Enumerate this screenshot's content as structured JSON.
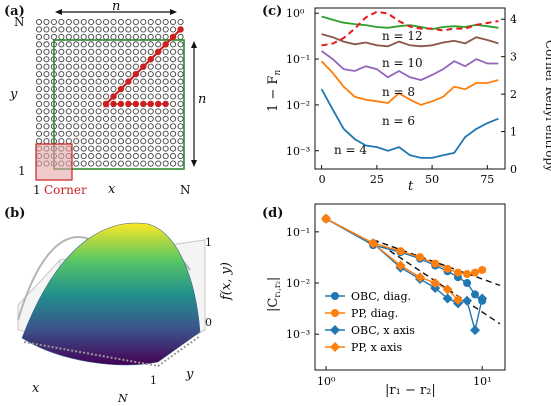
{
  "panels": {
    "a": {
      "label": "(a)",
      "top_label": "n",
      "right_label": "n",
      "y_label": "y",
      "x_label": "x",
      "corner_label": "Corner",
      "y_ticks": [
        "N",
        "1"
      ],
      "x_ticks": [
        "1",
        "N"
      ],
      "colors": {
        "inner_square": "#2e8b2e",
        "diagonal": "#cc1f1f",
        "corner_box": "#e5a7a7"
      }
    },
    "b": {
      "label": "(b)",
      "x_label": "x",
      "y_label": "y",
      "z_label": "f(x, y)",
      "z_ticks": [
        "0",
        "1"
      ],
      "y_ticks": [
        "1",
        "N"
      ]
    },
    "c": {
      "label": "(c)",
      "ylabel_left": "1 − F",
      "ylabel_left_sub": "n",
      "ylabel_right": "Corner Rényi entropy",
      "xlabel": "t",
      "x_ticks": [
        "0",
        "25",
        "50",
        "75"
      ],
      "y_ticks_left": [
        "10⁰",
        "10⁻¹",
        "10⁻²",
        "10⁻³"
      ],
      "y_ticks_right": [
        "0",
        "1",
        "2",
        "3",
        "4"
      ],
      "curve_labels": [
        "n = 12",
        "n = 10",
        "n = 8",
        "n = 6",
        "n = 4"
      ]
    },
    "d": {
      "label": "(d)",
      "ylabel": "|C",
      "ylabel_sub": "r₁,r₂",
      "ylabel_end": "|",
      "xlabel": "|r₁ − r₂|",
      "x_ticks": [
        "10⁰",
        "10¹"
      ],
      "y_ticks": [
        "10⁻¹",
        "10⁻²",
        "10⁻³"
      ]
    }
  },
  "chart_data": [
    {
      "panel": "c",
      "type": "line",
      "xlabel": "t",
      "ylabel": "1 − F_n",
      "y2label": "Corner Rényi entropy",
      "xlim": [
        -3,
        83
      ],
      "ylim": [
        0.0004,
        1.3
      ],
      "y2lim": [
        0,
        4.3
      ],
      "yscale": "log",
      "series": [
        {
          "name": "n = 12",
          "color": "#2ca02c",
          "x": [
            0,
            5,
            10,
            15,
            20,
            25,
            30,
            35,
            40,
            45,
            50,
            55,
            60,
            65,
            70,
            75,
            80
          ],
          "y": [
            0.85,
            0.72,
            0.62,
            0.58,
            0.55,
            0.5,
            0.48,
            0.52,
            0.55,
            0.5,
            0.45,
            0.5,
            0.52,
            0.5,
            0.56,
            0.52,
            0.48
          ]
        },
        {
          "name": "n = 10",
          "color": "#8c564b",
          "x": [
            0,
            5,
            10,
            15,
            20,
            25,
            30,
            35,
            40,
            45,
            50,
            55,
            60,
            65,
            70,
            75,
            80
          ],
          "y": [
            0.35,
            0.3,
            0.24,
            0.21,
            0.23,
            0.2,
            0.19,
            0.24,
            0.2,
            0.19,
            0.2,
            0.23,
            0.25,
            0.22,
            0.3,
            0.26,
            0.22
          ]
        },
        {
          "name": "n = 8",
          "color": "#9467bd",
          "x": [
            0,
            5,
            10,
            15,
            20,
            25,
            30,
            35,
            40,
            45,
            50,
            55,
            60,
            65,
            70,
            75,
            80
          ],
          "y": [
            0.15,
            0.1,
            0.06,
            0.055,
            0.07,
            0.06,
            0.04,
            0.055,
            0.04,
            0.035,
            0.045,
            0.06,
            0.09,
            0.07,
            0.1,
            0.08,
            0.08
          ]
        },
        {
          "name": "n = 6",
          "color": "#ff7f0e",
          "x": [
            0,
            5,
            10,
            15,
            20,
            25,
            30,
            35,
            40,
            45,
            50,
            55,
            60,
            65,
            70,
            75,
            80
          ],
          "y": [
            0.09,
            0.05,
            0.025,
            0.015,
            0.013,
            0.012,
            0.011,
            0.018,
            0.013,
            0.01,
            0.012,
            0.015,
            0.025,
            0.022,
            0.03,
            0.03,
            0.035
          ]
        },
        {
          "name": "n = 4",
          "color": "#1f77b4",
          "x": [
            0,
            5,
            10,
            15,
            20,
            25,
            30,
            35,
            40,
            45,
            50,
            55,
            60,
            65,
            70,
            75,
            80
          ],
          "y": [
            0.022,
            0.008,
            0.003,
            0.0018,
            0.0013,
            0.0012,
            0.001,
            0.0012,
            0.0008,
            0.0007,
            0.0007,
            0.0008,
            0.0009,
            0.002,
            0.003,
            0.004,
            0.005
          ]
        },
        {
          "name": "Corner Rényi entropy",
          "color": "#e41a1c",
          "dashed": true,
          "axis": "right",
          "x": [
            0,
            5,
            10,
            15,
            20,
            25,
            30,
            35,
            40,
            45,
            50,
            55,
            60,
            65,
            70,
            75,
            80
          ],
          "y": [
            3.3,
            3.35,
            3.5,
            3.75,
            4.05,
            4.2,
            4.15,
            3.95,
            3.8,
            3.75,
            3.75,
            3.7,
            3.75,
            3.75,
            3.85,
            3.9,
            3.95
          ]
        }
      ]
    },
    {
      "panel": "d",
      "type": "scatter",
      "xlabel": "|r₁ − r₂|",
      "ylabel": "|C_{r₁,r₂}|",
      "xscale": "log",
      "yscale": "log",
      "xlim": [
        0.85,
        14
      ],
      "ylim": [
        0.0002,
        0.35
      ],
      "series": [
        {
          "name": "OBC, diag.",
          "color": "#1f77b4",
          "marker": "circle",
          "x": [
            1,
            2,
            3,
            4,
            5,
            6,
            7,
            8,
            9,
            10
          ],
          "y": [
            0.18,
            0.055,
            0.04,
            0.03,
            0.022,
            0.017,
            0.013,
            0.01,
            0.006,
            0.0045
          ]
        },
        {
          "name": "PP, diag.",
          "color": "#ff7f0e",
          "marker": "circle",
          "x": [
            1,
            2,
            3,
            4,
            5,
            6,
            7,
            8,
            9,
            10
          ],
          "y": [
            0.18,
            0.06,
            0.042,
            0.032,
            0.024,
            0.019,
            0.016,
            0.015,
            0.016,
            0.018
          ]
        },
        {
          "name": "OBC, x axis",
          "color": "#1f77b4",
          "marker": "diamond",
          "x": [
            1,
            2,
            3,
            4,
            5,
            6,
            7,
            8,
            9,
            10
          ],
          "y": [
            0.18,
            0.06,
            0.02,
            0.012,
            0.008,
            0.005,
            0.004,
            0.0045,
            0.0012,
            0.005
          ]
        },
        {
          "name": "PP, x axis",
          "color": "#ff7f0e",
          "marker": "diamond",
          "x": [
            1,
            2,
            3,
            4,
            5,
            6,
            7
          ],
          "y": [
            0.18,
            0.06,
            0.022,
            0.013,
            0.01,
            0.0075,
            0.0047
          ]
        }
      ],
      "fit_lines": [
        {
          "style": "dashed",
          "x": [
            2,
            13
          ],
          "y": [
            0.07,
            0.009
          ]
        },
        {
          "style": "dashed",
          "x": [
            2,
            13
          ],
          "y": [
            0.07,
            0.0016
          ]
        }
      ]
    }
  ]
}
